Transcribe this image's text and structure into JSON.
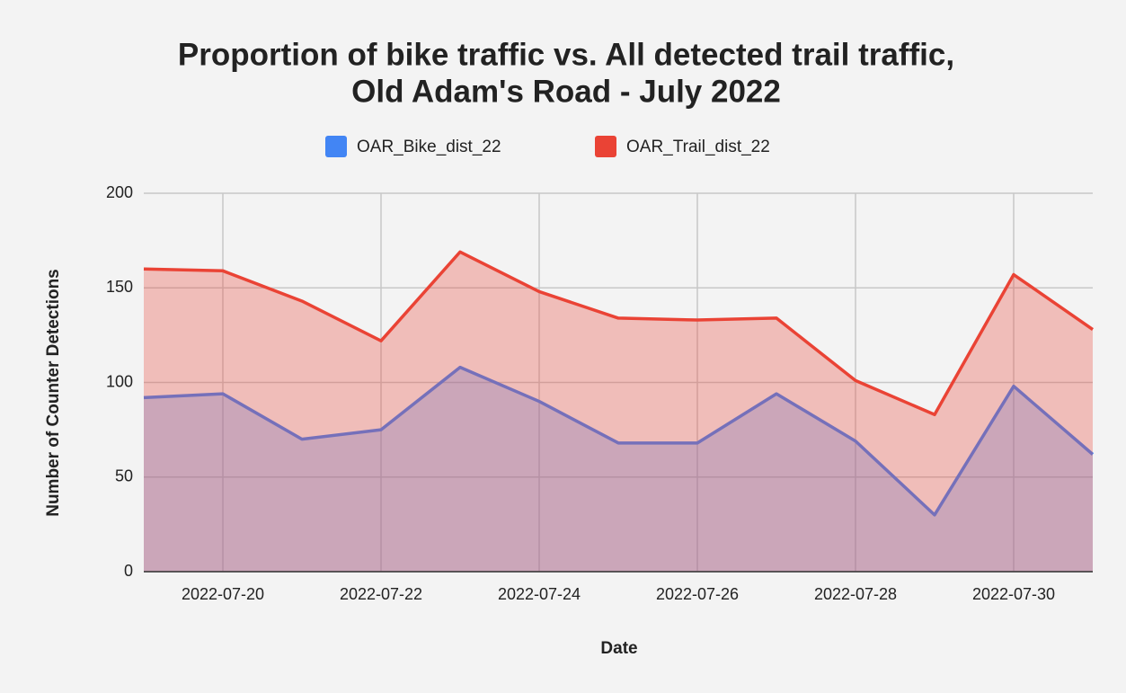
{
  "chart_data": {
    "type": "area",
    "title": [
      "Proportion of bike traffic vs. All detected trail traffic,",
      "Old Adam's Road - July 2022"
    ],
    "x_label": "Date",
    "y_label": "Number of Counter Detections",
    "x": [
      "2022-07-19",
      "2022-07-20",
      "2022-07-21",
      "2022-07-22",
      "2022-07-23",
      "2022-07-24",
      "2022-07-25",
      "2022-07-26",
      "2022-07-27",
      "2022-07-28",
      "2022-07-29",
      "2022-07-30",
      "2022-07-31"
    ],
    "series": [
      {
        "name": "OAR_Bike_dist_22",
        "color": "#4285f4",
        "values": [
          92,
          94,
          70,
          75,
          108,
          90,
          68,
          68,
          94,
          69,
          30,
          98,
          62
        ]
      },
      {
        "name": "OAR_Trail_dist_22",
        "color": "#ea4335",
        "values": [
          160,
          159,
          143,
          122,
          169,
          148,
          134,
          133,
          134,
          101,
          83,
          157,
          128
        ]
      }
    ],
    "xlim": [
      "2022-07-19",
      "2022-07-31"
    ],
    "xticks": [
      "2022-07-20",
      "2022-07-22",
      "2022-07-24",
      "2022-07-26",
      "2022-07-28",
      "2022-07-30"
    ],
    "ylim": [
      0,
      200
    ],
    "yticks": [
      0,
      50,
      100,
      150,
      200
    ],
    "grid": true,
    "legend": "top"
  }
}
